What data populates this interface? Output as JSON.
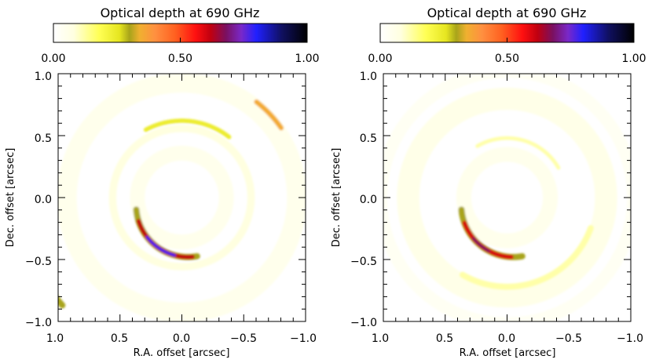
{
  "chart_data": [
    {
      "type": "heatmap",
      "colorbar": {
        "title": "Optical depth at 690 GHz",
        "range": [
          0.0,
          1.0
        ],
        "tick_values": [
          0.0,
          0.5,
          1.0
        ],
        "tick_labels": [
          "0.00",
          "0.50",
          "1.00"
        ],
        "color_stops": [
          {
            "v": 0.0,
            "color": "#ffffff"
          },
          {
            "v": 0.08,
            "color": "#ffffe0"
          },
          {
            "v": 0.18,
            "color": "#ffff55"
          },
          {
            "v": 0.26,
            "color": "#e6e620"
          },
          {
            "v": 0.3,
            "color": "#a8a41a"
          },
          {
            "v": 0.34,
            "color": "#f0b030"
          },
          {
            "v": 0.4,
            "color": "#ff9040"
          },
          {
            "v": 0.48,
            "color": "#ff6020"
          },
          {
            "v": 0.56,
            "color": "#ff1010"
          },
          {
            "v": 0.62,
            "color": "#c00010"
          },
          {
            "v": 0.68,
            "color": "#7a1060"
          },
          {
            "v": 0.74,
            "color": "#7a28c8"
          },
          {
            "v": 0.8,
            "color": "#2020ff"
          },
          {
            "v": 0.9,
            "color": "#101060"
          },
          {
            "v": 1.0,
            "color": "#000000"
          }
        ]
      },
      "xlabel": "R.A. offset [arcsec]",
      "ylabel": "Dec. offset [arcsec]",
      "xlim": [
        1.0,
        -1.0
      ],
      "ylim": [
        -1.0,
        1.0
      ],
      "x_ticks": [
        1.0,
        0.5,
        0.0,
        -0.5,
        -1.0
      ],
      "x_tick_labels": [
        "1.0",
        "0.5",
        "0.0",
        "−0.5",
        "−1.0"
      ],
      "y_ticks": [
        -1.0,
        -0.5,
        0.0,
        0.5,
        1.0
      ],
      "y_tick_labels": [
        "−1.0",
        "−0.5",
        "0.0",
        "0.5",
        "1.0"
      ],
      "features": [
        {
          "kind": "ring",
          "r": 0.56,
          "width": 0.06,
          "depth": 0.08
        },
        {
          "kind": "ring",
          "r": 0.36,
          "width": 0.12,
          "depth": 0.05
        },
        {
          "kind": "ring",
          "r": 0.93,
          "width": 0.16,
          "depth": 0.05
        },
        {
          "kind": "arc",
          "cx": -0.05,
          "cy": -0.06,
          "r": 0.42,
          "a0": -100,
          "a1": -5,
          "width": 0.05,
          "depth": 0.3
        },
        {
          "kind": "arc",
          "cx": -0.05,
          "cy": -0.06,
          "r": 0.42,
          "a0": -95,
          "a1": -18,
          "width": 0.035,
          "depth": 0.62
        },
        {
          "kind": "arc",
          "cx": -0.05,
          "cy": -0.06,
          "r": 0.42,
          "a0": -75,
          "a1": -38,
          "width": 0.02,
          "depth": 0.8
        },
        {
          "kind": "arc",
          "cx": 0,
          "cy": 0,
          "r": 0.98,
          "a0": 128,
          "a1": 145,
          "width": 0.04,
          "depth": 0.35
        },
        {
          "kind": "arc",
          "cx": 0,
          "cy": 0,
          "r": 0.62,
          "a0": 62,
          "a1": 128,
          "width": 0.035,
          "depth": 0.24
        },
        {
          "kind": "arc",
          "cx": 0,
          "cy": 0,
          "r": 1.3,
          "a0": -42,
          "a1": -36,
          "width": 0.05,
          "depth": 0.3
        }
      ]
    },
    {
      "type": "heatmap",
      "colorbar": {
        "title": "Optical depth at 690 GHz",
        "range": [
          0.0,
          1.0
        ],
        "tick_values": [
          0.0,
          0.5,
          1.0
        ],
        "tick_labels": [
          "0.00",
          "0.50",
          "1.00"
        ],
        "color_stops": [
          {
            "v": 0.0,
            "color": "#ffffff"
          },
          {
            "v": 0.08,
            "color": "#ffffe0"
          },
          {
            "v": 0.18,
            "color": "#ffff55"
          },
          {
            "v": 0.26,
            "color": "#e6e620"
          },
          {
            "v": 0.3,
            "color": "#a8a41a"
          },
          {
            "v": 0.34,
            "color": "#f0b030"
          },
          {
            "v": 0.4,
            "color": "#ff9040"
          },
          {
            "v": 0.48,
            "color": "#ff6020"
          },
          {
            "v": 0.56,
            "color": "#ff1010"
          },
          {
            "v": 0.62,
            "color": "#c00010"
          },
          {
            "v": 0.68,
            "color": "#7a1060"
          },
          {
            "v": 0.74,
            "color": "#7a28c8"
          },
          {
            "v": 0.8,
            "color": "#2020ff"
          },
          {
            "v": 0.9,
            "color": "#101060"
          },
          {
            "v": 1.0,
            "color": "#000000"
          }
        ]
      },
      "xlabel": "R.A. offset [arcsec]",
      "ylabel": "Dec. offset [arcsec]",
      "xlim": [
        1.0,
        -1.0
      ],
      "ylim": [
        -1.0,
        1.0
      ],
      "x_ticks": [
        1.0,
        0.5,
        0.0,
        -0.5,
        -1.0
      ],
      "x_tick_labels": [
        "1.0",
        "0.5",
        "0.0",
        "−0.5",
        "−1.0"
      ],
      "y_ticks": [
        -1.0,
        -0.5,
        0.0,
        0.5,
        1.0
      ],
      "y_tick_labels": [
        "−1.0",
        "−0.5",
        "0.0",
        "0.5",
        "1.0"
      ],
      "features": [
        {
          "kind": "ring",
          "r": 0.35,
          "width": 0.12,
          "depth": 0.05
        },
        {
          "kind": "ring",
          "r": 0.8,
          "width": 0.18,
          "depth": 0.06
        },
        {
          "kind": "ring",
          "r": 1.02,
          "width": 0.1,
          "depth": 0.03
        },
        {
          "kind": "arc",
          "cx": -0.05,
          "cy": -0.06,
          "r": 0.42,
          "a0": -100,
          "a1": -5,
          "width": 0.05,
          "depth": 0.3
        },
        {
          "kind": "arc",
          "cx": -0.05,
          "cy": -0.06,
          "r": 0.42,
          "a0": -88,
          "a1": -20,
          "width": 0.035,
          "depth": 0.6
        },
        {
          "kind": "arc",
          "cx": -0.05,
          "cy": -0.06,
          "r": 0.42,
          "a0": -62,
          "a1": -40,
          "width": 0.02,
          "depth": 0.68
        },
        {
          "kind": "arc",
          "cx": 0,
          "cy": 0,
          "r": 0.48,
          "a0": 60,
          "a1": 150,
          "width": 0.03,
          "depth": 0.12
        },
        {
          "kind": "arc",
          "cx": 0,
          "cy": 0,
          "r": 0.72,
          "a0": 200,
          "a1": 300,
          "width": 0.05,
          "depth": 0.12
        }
      ]
    }
  ]
}
